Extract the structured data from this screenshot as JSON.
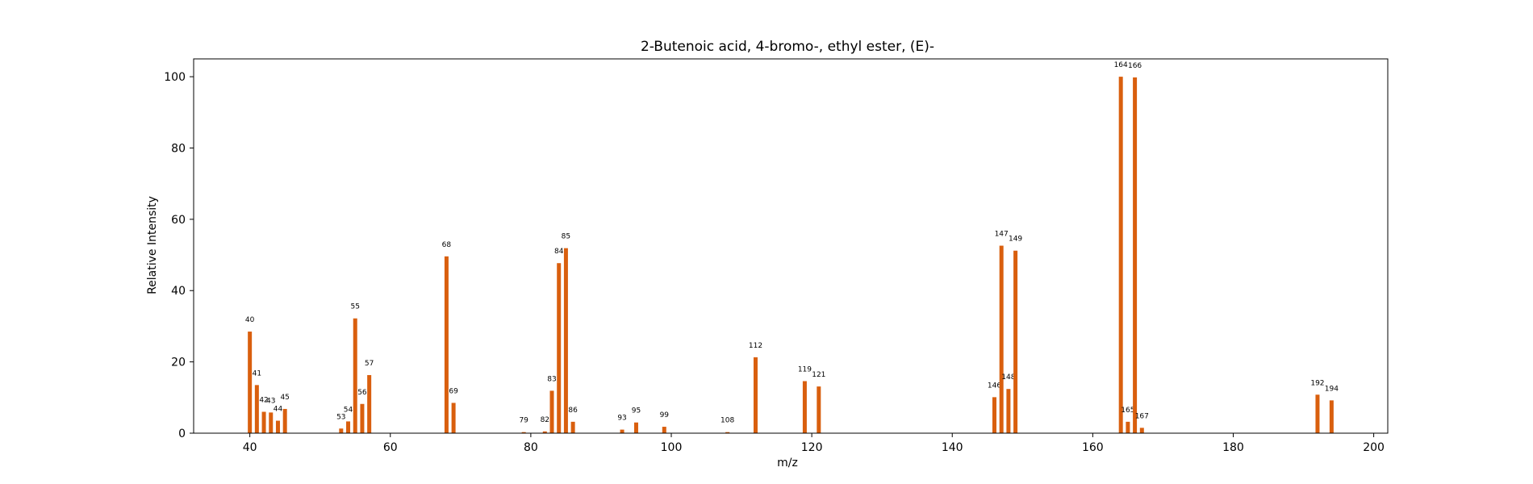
{
  "chart_data": {
    "type": "bar",
    "title": "2-Butenoic acid, 4-bromo-, ethyl ester, (E)-",
    "xlabel": "m/z",
    "ylabel": "Relative Intensity",
    "xlim": [
      32,
      202
    ],
    "ylim": [
      0,
      105
    ],
    "xticks": [
      40,
      60,
      80,
      100,
      120,
      140,
      160,
      180,
      200
    ],
    "yticks": [
      0,
      20,
      40,
      60,
      80,
      100
    ],
    "grid": false,
    "bar_color": "#d95f0e",
    "series": [
      {
        "peaks": [
          {
            "mz": 40,
            "intensity": 28.5,
            "label": "40"
          },
          {
            "mz": 41,
            "intensity": 13.5,
            "label": "41"
          },
          {
            "mz": 42,
            "intensity": 6.0,
            "label": "42"
          },
          {
            "mz": 43,
            "intensity": 5.8,
            "label": "43"
          },
          {
            "mz": 44,
            "intensity": 3.5,
            "label": "44"
          },
          {
            "mz": 45,
            "intensity": 6.8,
            "label": "45"
          },
          {
            "mz": 53,
            "intensity": 1.3,
            "label": "53"
          },
          {
            "mz": 54,
            "intensity": 3.3,
            "label": "54"
          },
          {
            "mz": 55,
            "intensity": 32.2,
            "label": "55"
          },
          {
            "mz": 56,
            "intensity": 8.2,
            "label": "56"
          },
          {
            "mz": 57,
            "intensity": 16.3,
            "label": "57"
          },
          {
            "mz": 68,
            "intensity": 49.6,
            "label": "68"
          },
          {
            "mz": 69,
            "intensity": 8.5,
            "label": "69"
          },
          {
            "mz": 79,
            "intensity": 0.3,
            "label": "79"
          },
          {
            "mz": 82,
            "intensity": 0.5,
            "label": "82"
          },
          {
            "mz": 83,
            "intensity": 11.9,
            "label": "83"
          },
          {
            "mz": 84,
            "intensity": 47.7,
            "label": "84"
          },
          {
            "mz": 85,
            "intensity": 51.9,
            "label": "85"
          },
          {
            "mz": 86,
            "intensity": 3.2,
            "label": "86"
          },
          {
            "mz": 93,
            "intensity": 1.0,
            "label": "93"
          },
          {
            "mz": 95,
            "intensity": 3.0,
            "label": "95"
          },
          {
            "mz": 99,
            "intensity": 1.8,
            "label": "99"
          },
          {
            "mz": 108,
            "intensity": 0.3,
            "label": "108"
          },
          {
            "mz": 112,
            "intensity": 21.3,
            "label": "112"
          },
          {
            "mz": 119,
            "intensity": 14.6,
            "label": "119"
          },
          {
            "mz": 121,
            "intensity": 13.1,
            "label": "121"
          },
          {
            "mz": 146,
            "intensity": 10.1,
            "label": "146"
          },
          {
            "mz": 147,
            "intensity": 52.6,
            "label": "147"
          },
          {
            "mz": 148,
            "intensity": 12.4,
            "label": "148"
          },
          {
            "mz": 149,
            "intensity": 51.2,
            "label": "149"
          },
          {
            "mz": 164,
            "intensity": 100.0,
            "label": "164"
          },
          {
            "mz": 165,
            "intensity": 3.2,
            "label": "165"
          },
          {
            "mz": 166,
            "intensity": 99.8,
            "label": "166"
          },
          {
            "mz": 167,
            "intensity": 1.5,
            "label": "167"
          },
          {
            "mz": 192,
            "intensity": 10.8,
            "label": "192"
          },
          {
            "mz": 194,
            "intensity": 9.2,
            "label": "194"
          }
        ]
      }
    ]
  }
}
